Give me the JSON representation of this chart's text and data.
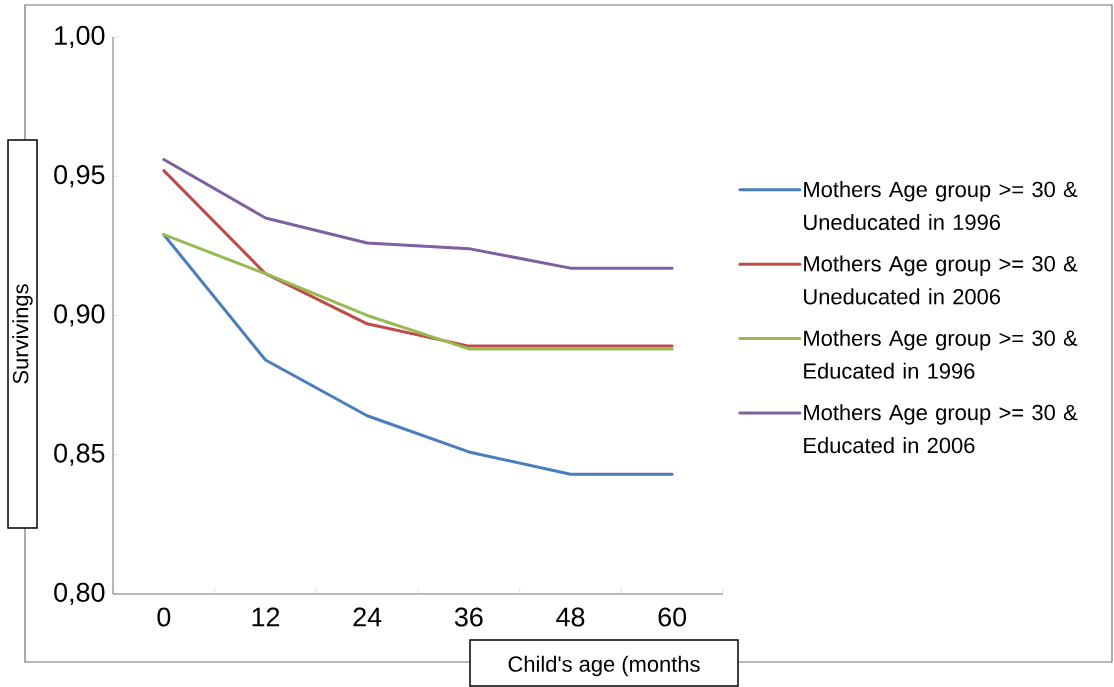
{
  "chart_data": {
    "type": "line",
    "xlabel": "Child's age  (months",
    "ylabel": "Survivings",
    "categories": [
      "0",
      "12",
      "24",
      "36",
      "48",
      "60"
    ],
    "series": [
      {
        "name": "Mothers Age group >= 30 & Uneducated in 1996",
        "color": "#4a7ebb",
        "values": [
          0.929,
          0.884,
          0.864,
          0.851,
          0.843,
          0.843
        ]
      },
      {
        "name": "Mothers Age group >= 30 & Uneducated in 2006",
        "color": "#be4b48",
        "values": [
          0.952,
          0.915,
          0.897,
          0.889,
          0.889,
          0.889
        ]
      },
      {
        "name": "Mothers Age group >= 30 & Educated in 1996",
        "color": "#98b954",
        "values": [
          0.929,
          0.915,
          0.9,
          0.888,
          0.888,
          0.888
        ]
      },
      {
        "name": "Mothers Age group >= 30 & Educated in 2006",
        "color": "#7d60a0",
        "values": [
          0.956,
          0.935,
          0.926,
          0.924,
          0.917,
          0.917
        ]
      }
    ],
    "ylim": [
      0.8,
      1.0
    ],
    "yticks": [
      {
        "value": 0.8,
        "label": "0,80"
      },
      {
        "value": 0.85,
        "label": "0,85"
      },
      {
        "value": 0.9,
        "label": "0,90"
      },
      {
        "value": 0.95,
        "label": "0,95"
      },
      {
        "value": 1.0,
        "label": "1,00"
      }
    ],
    "legend": "right",
    "grid": false,
    "marker": "none",
    "line_style": "solid"
  }
}
